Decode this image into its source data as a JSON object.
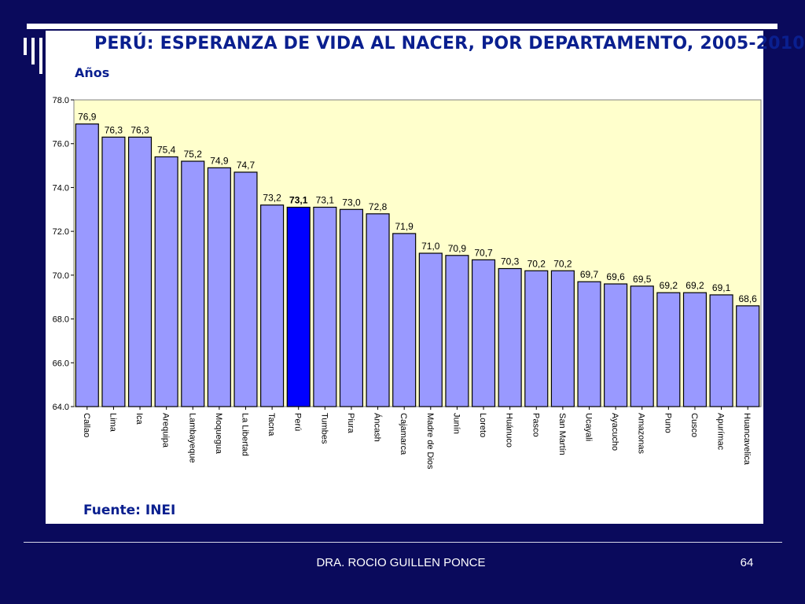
{
  "slide": {
    "author": "DRA. ROCIO GUILLEN PONCE",
    "page_number": "64"
  },
  "chart_data": {
    "type": "bar",
    "title": "PERÚ: ESPERANZA DE VIDA AL NACER, POR DEPARTAMENTO, 2005-2010",
    "ylabel": "Años",
    "source": "Fuente: INEI",
    "ylim": [
      64,
      78
    ],
    "ytick_labels": [
      "64.0",
      "66.0",
      "68.0",
      "70.0",
      "72.0",
      "74.0",
      "76.0",
      "78.0"
    ],
    "grid": false,
    "categories": [
      "Callao",
      "Lima",
      "Ica",
      "Arequipa",
      "Lambayeque",
      "Moquegua",
      "La Libertad",
      "Tacna",
      "Perú",
      "Tumbes",
      "Piura",
      "Áncash",
      "Cajamarca",
      "Madre de Dios",
      "Junín",
      "Loreto",
      "Huánuco",
      "Pasco",
      "San Martín",
      "Ucayali",
      "Ayacucho",
      "Amazonas",
      "Puno",
      "Cusco",
      "Apurímac",
      "Huancavelica"
    ],
    "values": [
      76.9,
      76.3,
      76.3,
      75.4,
      75.2,
      74.9,
      74.7,
      73.2,
      73.1,
      73.1,
      73.0,
      72.8,
      71.9,
      71.0,
      70.9,
      70.7,
      70.3,
      70.2,
      70.2,
      69.7,
      69.6,
      69.5,
      69.2,
      69.2,
      69.1,
      68.6
    ],
    "value_labels": [
      "76,9",
      "76,3",
      "76,3",
      "75,4",
      "75,2",
      "74,9",
      "74,7",
      "73,2",
      "73,1",
      "73,1",
      "73,0",
      "72,8",
      "71,9",
      "71,0",
      "70,9",
      "70,7",
      "70,3",
      "70,2",
      "70,2",
      "69,7",
      "69,6",
      "69,5",
      "69,2",
      "69,2",
      "69,1",
      "68,6"
    ],
    "highlight": "Perú",
    "colors": {
      "bar": "#9999ff",
      "highlight_bar": "#0000ff",
      "plot_background": "#ffffcc",
      "text": "#0a1f8f"
    }
  }
}
